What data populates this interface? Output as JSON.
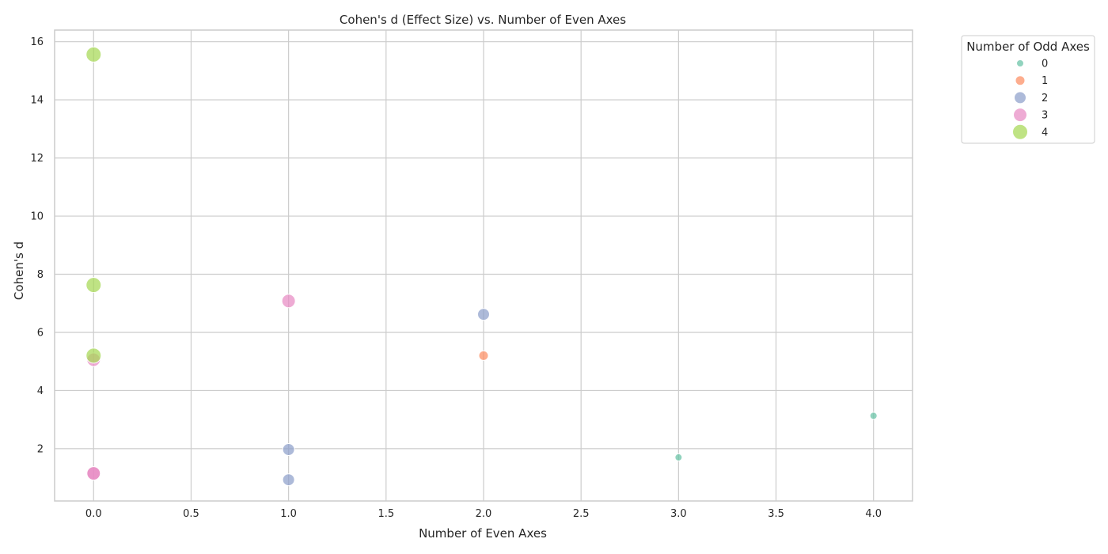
{
  "chart_data": {
    "type": "scatter",
    "title": "Cohen's d (Effect Size) vs. Number of Even Axes",
    "xlabel": "Number of Even Axes",
    "ylabel": "Cohen's d",
    "xlim": [
      -0.2,
      4.2
    ],
    "ylim": [
      0.2,
      16.4
    ],
    "xticks": [
      0.0,
      0.5,
      1.0,
      1.5,
      2.0,
      2.5,
      3.0,
      3.5,
      4.0
    ],
    "xtick_labels": [
      "0.0",
      "0.5",
      "1.0",
      "1.5",
      "2.0",
      "2.5",
      "3.0",
      "3.5",
      "4.0"
    ],
    "yticks": [
      2,
      4,
      6,
      8,
      10,
      12,
      14,
      16
    ],
    "ytick_labels": [
      "2",
      "4",
      "6",
      "8",
      "10",
      "12",
      "14",
      "16"
    ],
    "grid": true,
    "legend": {
      "title": "Number of Odd Axes",
      "placement": "outside-top-right",
      "entries": [
        "0",
        "1",
        "2",
        "3",
        "4"
      ]
    },
    "series": [
      {
        "name": "0",
        "color": "#66c2a5",
        "points": [
          [
            3.0,
            1.7
          ],
          [
            4.0,
            3.13
          ]
        ]
      },
      {
        "name": "1",
        "color": "#fc8d62",
        "points": [
          [
            2.0,
            5.2
          ]
        ]
      },
      {
        "name": "2",
        "color": "#8da0cb",
        "points": [
          [
            1.0,
            1.97
          ],
          [
            1.0,
            0.93
          ],
          [
            2.0,
            6.62
          ]
        ]
      },
      {
        "name": "3",
        "color": "#e78ac3",
        "points": [
          [
            1.0,
            7.08
          ],
          [
            0.0,
            5.06
          ],
          [
            0.0,
            1.15
          ],
          [
            0.0,
            1.15
          ]
        ]
      },
      {
        "name": "4",
        "color": "#a6d854",
        "points": [
          [
            0.0,
            15.56
          ],
          [
            0.0,
            7.63
          ],
          [
            0.0,
            5.2
          ]
        ]
      }
    ]
  }
}
